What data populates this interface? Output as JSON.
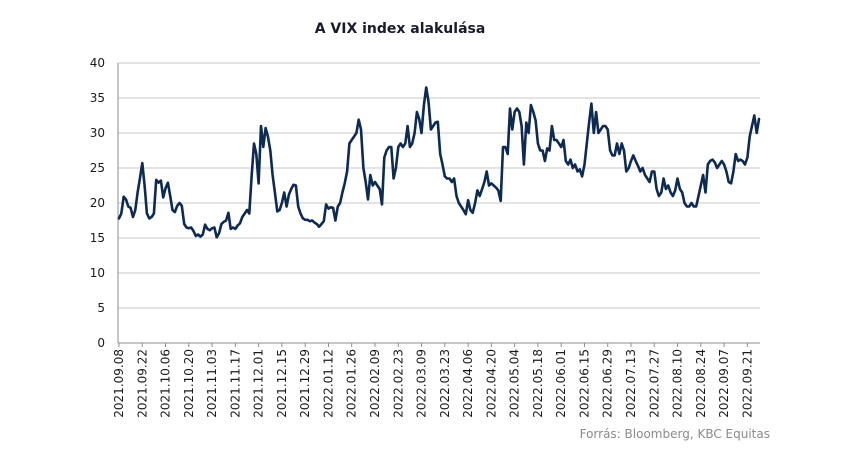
{
  "chart_data": {
    "type": "line",
    "title": "A VIX index alakulása",
    "xlabel": "",
    "ylabel": "",
    "ylim": [
      0,
      40
    ],
    "yticks": [
      "0",
      "5",
      "10",
      "15",
      "20",
      "25",
      "30",
      "35",
      "40"
    ],
    "grid": true,
    "line_color": "#0d2a52",
    "x_tick_labels": [
      "2021.09.08",
      "2021.09.22",
      "2021.10.06",
      "2021.10.20",
      "2021.11.03",
      "2021.11.17",
      "2021.12.01",
      "2021.12.15",
      "2021.12.29",
      "2022.01.12",
      "2022.01.26",
      "2022.02.09",
      "2022.02.23",
      "2022.03.09",
      "2022.03.23",
      "2022.04.06",
      "2022.04.20",
      "2022.05.04",
      "2022.05.18",
      "2022.06.01",
      "2022.06.15",
      "2022.06.29",
      "2022.07.13",
      "2022.07.27",
      "2022.08.10",
      "2022.08.24",
      "2022.09.07",
      "2022.09.21"
    ],
    "series": [
      {
        "values": [
          [
            0,
            17.8
          ],
          [
            1,
            18.5
          ],
          [
            2,
            20.9
          ],
          [
            3,
            20.5
          ],
          [
            4,
            19.5
          ],
          [
            5,
            19.3
          ],
          [
            6,
            18.0
          ],
          [
            7,
            19.0
          ],
          [
            8,
            21.5
          ],
          [
            9,
            23.5
          ],
          [
            10,
            25.7
          ],
          [
            11,
            22.5
          ],
          [
            12,
            18.5
          ],
          [
            13,
            17.8
          ],
          [
            14,
            18.0
          ],
          [
            15,
            18.5
          ],
          [
            16,
            23.3
          ],
          [
            17,
            22.9
          ],
          [
            18,
            23.2
          ],
          [
            19,
            20.8
          ],
          [
            20,
            22.1
          ],
          [
            21,
            22.9
          ],
          [
            22,
            21.0
          ],
          [
            23,
            19.0
          ],
          [
            24,
            18.7
          ],
          [
            25,
            19.6
          ],
          [
            26,
            20.0
          ],
          [
            27,
            19.6
          ],
          [
            28,
            17.0
          ],
          [
            29,
            16.5
          ],
          [
            30,
            16.4
          ],
          [
            31,
            16.5
          ],
          [
            32,
            16.0
          ],
          [
            33,
            15.3
          ],
          [
            34,
            15.5
          ],
          [
            35,
            15.2
          ],
          [
            36,
            15.5
          ],
          [
            37,
            16.9
          ],
          [
            38,
            16.3
          ],
          [
            39,
            16.1
          ],
          [
            40,
            16.4
          ],
          [
            41,
            16.5
          ],
          [
            42,
            15.1
          ],
          [
            43,
            15.7
          ],
          [
            44,
            17.0
          ],
          [
            45,
            17.3
          ],
          [
            46,
            17.5
          ],
          [
            47,
            18.6
          ],
          [
            48,
            16.3
          ],
          [
            49,
            16.5
          ],
          [
            50,
            16.3
          ],
          [
            51,
            16.8
          ],
          [
            52,
            17.1
          ],
          [
            53,
            18.0
          ],
          [
            54,
            18.5
          ],
          [
            55,
            19.0
          ],
          [
            56,
            18.5
          ],
          [
            57,
            24.0
          ],
          [
            58,
            28.5
          ],
          [
            59,
            27.0
          ],
          [
            60,
            22.8
          ],
          [
            61,
            31.0
          ],
          [
            62,
            28.0
          ],
          [
            63,
            30.7
          ],
          [
            64,
            29.5
          ],
          [
            65,
            27.5
          ],
          [
            66,
            24.0
          ],
          [
            67,
            21.5
          ],
          [
            68,
            18.8
          ],
          [
            69,
            19.0
          ],
          [
            70,
            20.0
          ],
          [
            71,
            21.5
          ],
          [
            72,
            19.5
          ],
          [
            73,
            21.2
          ],
          [
            74,
            22.0
          ],
          [
            75,
            22.6
          ],
          [
            76,
            22.5
          ],
          [
            77,
            19.5
          ],
          [
            78,
            18.5
          ],
          [
            79,
            17.8
          ],
          [
            80,
            17.6
          ],
          [
            81,
            17.6
          ],
          [
            82,
            17.4
          ],
          [
            83,
            17.5
          ],
          [
            84,
            17.2
          ],
          [
            85,
            17.0
          ],
          [
            86,
            16.6
          ],
          [
            87,
            17.0
          ],
          [
            88,
            17.4
          ],
          [
            89,
            19.8
          ],
          [
            90,
            19.2
          ],
          [
            91,
            19.4
          ],
          [
            92,
            19.3
          ],
          [
            93,
            17.5
          ],
          [
            94,
            19.5
          ],
          [
            95,
            20.0
          ],
          [
            96,
            21.5
          ],
          [
            97,
            22.8
          ],
          [
            98,
            24.5
          ],
          [
            99,
            28.5
          ],
          [
            100,
            29.0
          ],
          [
            101,
            29.5
          ],
          [
            102,
            30.0
          ],
          [
            103,
            31.9
          ],
          [
            104,
            30.5
          ],
          [
            105,
            25.0
          ],
          [
            106,
            23.0
          ],
          [
            107,
            20.5
          ],
          [
            108,
            24.0
          ],
          [
            109,
            22.5
          ],
          [
            110,
            23.0
          ],
          [
            111,
            22.5
          ],
          [
            112,
            22.0
          ],
          [
            113,
            19.8
          ],
          [
            114,
            26.5
          ],
          [
            115,
            27.5
          ],
          [
            116,
            28.0
          ],
          [
            117,
            28.0
          ],
          [
            118,
            23.5
          ],
          [
            119,
            25.0
          ],
          [
            120,
            28.0
          ],
          [
            121,
            28.5
          ],
          [
            122,
            28.0
          ],
          [
            123,
            28.5
          ],
          [
            124,
            31.0
          ],
          [
            125,
            28.0
          ],
          [
            126,
            28.5
          ],
          [
            127,
            30.0
          ],
          [
            128,
            33.0
          ],
          [
            129,
            32.0
          ],
          [
            130,
            30.0
          ],
          [
            131,
            34.0
          ],
          [
            132,
            36.5
          ],
          [
            133,
            34.5
          ],
          [
            134,
            30.5
          ],
          [
            135,
            31.0
          ],
          [
            136,
            31.5
          ],
          [
            137,
            31.6
          ],
          [
            138,
            27.0
          ],
          [
            139,
            25.5
          ],
          [
            140,
            23.8
          ],
          [
            141,
            23.5
          ],
          [
            142,
            23.5
          ],
          [
            143,
            23.0
          ],
          [
            144,
            23.5
          ],
          [
            145,
            21.0
          ],
          [
            146,
            20.0
          ],
          [
            147,
            19.5
          ],
          [
            148,
            19.0
          ],
          [
            149,
            18.4
          ],
          [
            150,
            20.4
          ],
          [
            151,
            19.0
          ],
          [
            152,
            18.6
          ],
          [
            153,
            20.0
          ],
          [
            154,
            21.8
          ],
          [
            155,
            21.0
          ],
          [
            156,
            22.0
          ],
          [
            157,
            23.0
          ],
          [
            158,
            24.5
          ],
          [
            159,
            22.5
          ],
          [
            160,
            22.8
          ],
          [
            161,
            22.5
          ],
          [
            162,
            22.2
          ],
          [
            163,
            21.8
          ],
          [
            164,
            20.3
          ],
          [
            165,
            28.0
          ],
          [
            166,
            28.0
          ],
          [
            167,
            27.0
          ],
          [
            168,
            33.5
          ],
          [
            169,
            30.5
          ],
          [
            170,
            33.0
          ],
          [
            171,
            33.5
          ],
          [
            172,
            33.0
          ],
          [
            173,
            31.0
          ],
          [
            174,
            25.5
          ],
          [
            175,
            31.5
          ],
          [
            176,
            30.0
          ],
          [
            177,
            34.0
          ],
          [
            178,
            33.0
          ],
          [
            179,
            31.8
          ],
          [
            180,
            28.5
          ],
          [
            181,
            27.5
          ],
          [
            182,
            27.5
          ],
          [
            183,
            26.0
          ],
          [
            184,
            27.8
          ],
          [
            185,
            27.5
          ],
          [
            186,
            31.0
          ],
          [
            187,
            29.0
          ],
          [
            188,
            29.0
          ],
          [
            189,
            28.5
          ],
          [
            190,
            28.0
          ],
          [
            191,
            29.0
          ],
          [
            192,
            26.0
          ],
          [
            193,
            25.5
          ],
          [
            194,
            26.2
          ],
          [
            195,
            25.0
          ],
          [
            196,
            25.5
          ],
          [
            197,
            24.5
          ],
          [
            198,
            24.8
          ],
          [
            199,
            23.8
          ],
          [
            200,
            25.5
          ],
          [
            201,
            28.5
          ],
          [
            202,
            31.5
          ],
          [
            203,
            34.2
          ],
          [
            204,
            30.0
          ],
          [
            205,
            33.0
          ],
          [
            206,
            30.0
          ],
          [
            207,
            30.5
          ],
          [
            208,
            31.0
          ],
          [
            209,
            31.0
          ],
          [
            210,
            30.5
          ],
          [
            211,
            27.5
          ],
          [
            212,
            26.8
          ],
          [
            213,
            26.8
          ],
          [
            214,
            28.5
          ],
          [
            215,
            27.0
          ],
          [
            216,
            28.5
          ],
          [
            217,
            27.5
          ],
          [
            218,
            24.5
          ],
          [
            219,
            25.0
          ],
          [
            220,
            26.0
          ],
          [
            221,
            26.8
          ],
          [
            222,
            26.0
          ],
          [
            223,
            25.3
          ],
          [
            224,
            24.5
          ],
          [
            225,
            25.0
          ],
          [
            226,
            24.0
          ],
          [
            227,
            23.5
          ],
          [
            228,
            23.0
          ],
          [
            229,
            24.5
          ],
          [
            230,
            24.5
          ],
          [
            231,
            22.0
          ],
          [
            232,
            21.0
          ],
          [
            233,
            21.5
          ],
          [
            234,
            23.5
          ],
          [
            235,
            22.0
          ],
          [
            236,
            22.5
          ],
          [
            237,
            21.5
          ],
          [
            238,
            21.0
          ],
          [
            239,
            21.8
          ],
          [
            240,
            23.5
          ],
          [
            241,
            22.0
          ],
          [
            242,
            21.5
          ],
          [
            243,
            20.0
          ],
          [
            244,
            19.5
          ],
          [
            245,
            19.5
          ],
          [
            246,
            20.0
          ],
          [
            247,
            19.5
          ],
          [
            248,
            19.5
          ],
          [
            249,
            21.0
          ],
          [
            250,
            22.5
          ],
          [
            251,
            24.0
          ],
          [
            252,
            21.5
          ],
          [
            253,
            25.5
          ],
          [
            254,
            26.0
          ],
          [
            255,
            26.2
          ],
          [
            256,
            25.8
          ],
          [
            257,
            25.0
          ],
          [
            258,
            25.5
          ],
          [
            259,
            26.0
          ],
          [
            260,
            25.5
          ],
          [
            261,
            24.5
          ],
          [
            262,
            23.0
          ],
          [
            263,
            22.8
          ],
          [
            264,
            24.5
          ],
          [
            265,
            27.0
          ],
          [
            266,
            26.0
          ],
          [
            267,
            26.2
          ],
          [
            268,
            26.0
          ],
          [
            269,
            25.5
          ],
          [
            270,
            26.5
          ],
          [
            271,
            29.5
          ],
          [
            272,
            31.0
          ],
          [
            273,
            32.5
          ],
          [
            274,
            30.0
          ],
          [
            275,
            32.0
          ]
        ]
      }
    ]
  },
  "source": "Forrás: Bloomberg, KBC Equitas"
}
